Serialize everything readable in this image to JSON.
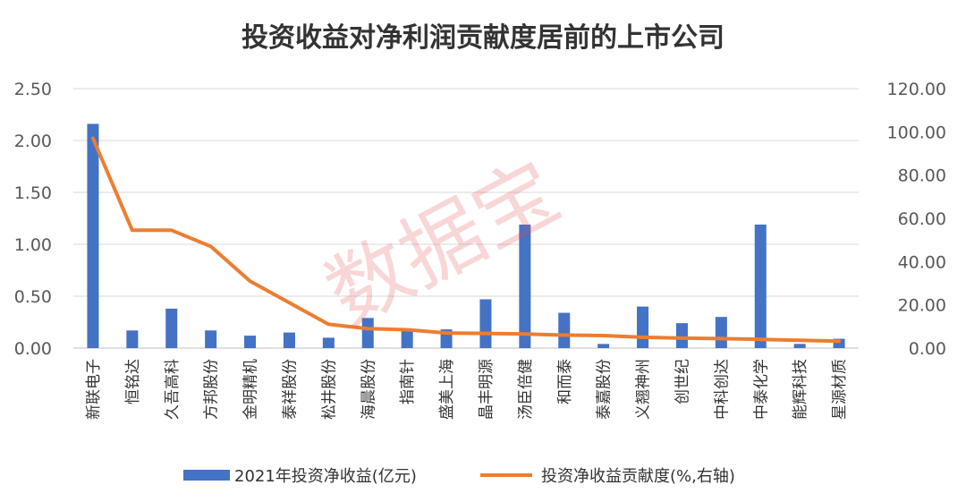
{
  "chart_data": {
    "type": "bar",
    "title": "投资收益对净利润贡献度居前的上市公司",
    "categories": [
      "新联电子",
      "恒铭达",
      "久吾高科",
      "方邦股份",
      "金明精机",
      "泰祥股份",
      "松井股份",
      "海晨股份",
      "指南针",
      "盛美上海",
      "晶丰明源",
      "汤臣倍健",
      "和而泰",
      "泰嘉股份",
      "义翘神州",
      "创世纪",
      "中科创达",
      "中泰化学",
      "能辉科技",
      "星源材质"
    ],
    "series": [
      {
        "name": "2021年投资净收益(亿元)",
        "type": "bar",
        "axis": "left",
        "color": "#4472C4",
        "values": [
          2.16,
          0.17,
          0.38,
          0.17,
          0.12,
          0.15,
          0.1,
          0.29,
          0.17,
          0.18,
          0.47,
          1.19,
          0.34,
          0.04,
          0.4,
          0.24,
          0.3,
          1.19,
          0.04,
          0.09
        ]
      },
      {
        "name": "投资净收益贡献度(%,右轴)",
        "type": "line",
        "axis": "right",
        "color": "#ED7D31",
        "values": [
          97.0,
          54.5,
          54.5,
          47.0,
          31.0,
          21.0,
          11.0,
          9.0,
          8.5,
          7.0,
          6.8,
          6.5,
          6.0,
          5.8,
          5.0,
          4.6,
          4.4,
          4.0,
          3.6,
          3.2
        ]
      }
    ],
    "y_left": {
      "min": 0,
      "max": 2.5,
      "ticks": [
        "0.00",
        "0.50",
        "1.00",
        "1.50",
        "2.00",
        "2.50"
      ]
    },
    "y_right": {
      "min": 0,
      "max": 120,
      "ticks": [
        "0.00",
        "20.00",
        "40.00",
        "60.00",
        "80.00",
        "100.00",
        "120.00"
      ]
    },
    "grid": true,
    "legend_position": "bottom",
    "watermark": "数据宝"
  }
}
